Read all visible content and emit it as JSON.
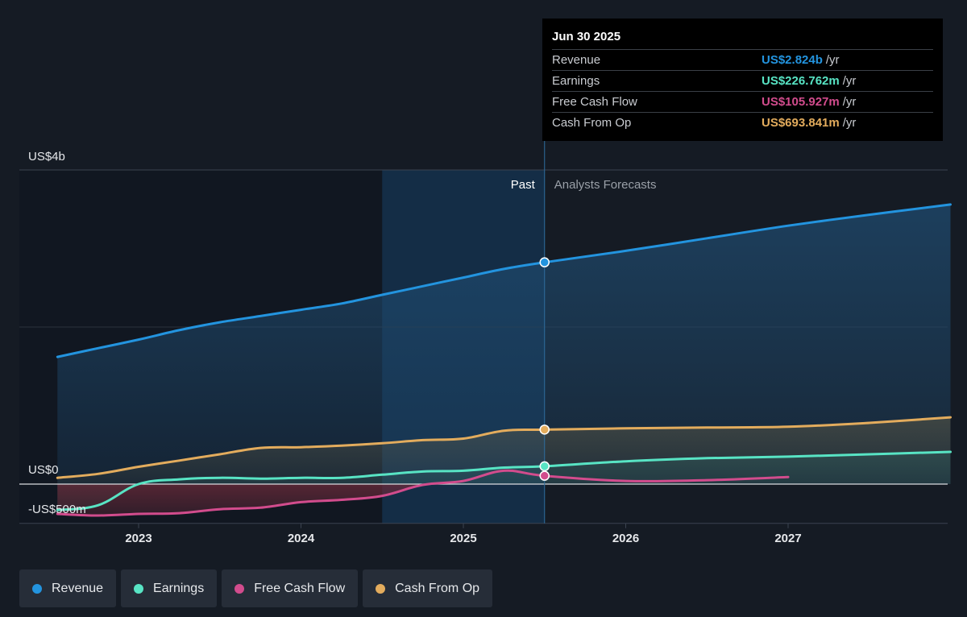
{
  "chart_data": {
    "type": "line",
    "y_unit_labels": [
      "US$4b",
      "US$0",
      "-US$500m"
    ],
    "ylim": [
      -500,
      4000
    ],
    "x_tick_labels": [
      "2023",
      "2024",
      "2025",
      "2026",
      "2027"
    ],
    "past_label": "Past",
    "forecast_label": "Analysts Forecasts",
    "divider_date": 2025.5,
    "series": [
      {
        "name": "Revenue",
        "color": "#2394df",
        "points": [
          [
            2022.5,
            1620
          ],
          [
            2022.75,
            1730
          ],
          [
            2023.0,
            1840
          ],
          [
            2023.25,
            1960
          ],
          [
            2023.5,
            2060
          ],
          [
            2023.75,
            2140
          ],
          [
            2024.0,
            2220
          ],
          [
            2024.25,
            2300
          ],
          [
            2024.5,
            2410
          ],
          [
            2024.75,
            2520
          ],
          [
            2025.0,
            2630
          ],
          [
            2025.25,
            2740
          ],
          [
            2025.5,
            2824
          ],
          [
            2026.0,
            2970
          ],
          [
            2026.5,
            3130
          ],
          [
            2027.0,
            3290
          ],
          [
            2027.5,
            3430
          ],
          [
            2028.0,
            3560
          ]
        ]
      },
      {
        "name": "Earnings",
        "color": "#58e4c4",
        "points": [
          [
            2022.5,
            -330
          ],
          [
            2022.75,
            -270
          ],
          [
            2023.0,
            0
          ],
          [
            2023.25,
            60
          ],
          [
            2023.5,
            80
          ],
          [
            2023.75,
            70
          ],
          [
            2024.0,
            80
          ],
          [
            2024.25,
            80
          ],
          [
            2024.5,
            120
          ],
          [
            2024.75,
            160
          ],
          [
            2025.0,
            170
          ],
          [
            2025.25,
            210
          ],
          [
            2025.5,
            226.762
          ],
          [
            2026.0,
            290
          ],
          [
            2026.5,
            330
          ],
          [
            2027.0,
            350
          ],
          [
            2027.5,
            380
          ],
          [
            2028.0,
            410
          ]
        ]
      },
      {
        "name": "Free Cash Flow",
        "color": "#d24c8d",
        "points": [
          [
            2022.5,
            -380
          ],
          [
            2022.75,
            -400
          ],
          [
            2023.0,
            -380
          ],
          [
            2023.25,
            -370
          ],
          [
            2023.5,
            -320
          ],
          [
            2023.75,
            -300
          ],
          [
            2024.0,
            -230
          ],
          [
            2024.25,
            -200
          ],
          [
            2024.5,
            -150
          ],
          [
            2024.75,
            -10
          ],
          [
            2025.0,
            40
          ],
          [
            2025.25,
            170
          ],
          [
            2025.5,
            105.927
          ],
          [
            2026.0,
            40
          ],
          [
            2026.5,
            50
          ],
          [
            2027.0,
            90
          ]
        ]
      },
      {
        "name": "Cash From Op",
        "color": "#e3ac5d",
        "points": [
          [
            2022.5,
            80
          ],
          [
            2022.75,
            130
          ],
          [
            2023.0,
            220
          ],
          [
            2023.25,
            300
          ],
          [
            2023.5,
            380
          ],
          [
            2023.75,
            460
          ],
          [
            2024.0,
            470
          ],
          [
            2024.25,
            490
          ],
          [
            2024.5,
            520
          ],
          [
            2024.75,
            560
          ],
          [
            2025.0,
            580
          ],
          [
            2025.25,
            680
          ],
          [
            2025.5,
            693.841
          ],
          [
            2026.0,
            710
          ],
          [
            2026.5,
            720
          ],
          [
            2027.0,
            730
          ],
          [
            2027.5,
            780
          ],
          [
            2028.0,
            850
          ]
        ]
      }
    ]
  },
  "tooltip": {
    "date": "Jun 30 2025",
    "rows": [
      {
        "label": "Revenue",
        "value": "US$2.824b",
        "unit": "/yr",
        "color": "#2394df"
      },
      {
        "label": "Earnings",
        "value": "US$226.762m",
        "unit": "/yr",
        "color": "#58e4c4"
      },
      {
        "label": "Free Cash Flow",
        "value": "US$105.927m",
        "unit": "/yr",
        "color": "#d24c8d"
      },
      {
        "label": "Cash From Op",
        "value": "US$693.841m",
        "unit": "/yr",
        "color": "#e3ac5d"
      }
    ]
  },
  "legend": [
    {
      "label": "Revenue",
      "color": "#2394df"
    },
    {
      "label": "Earnings",
      "color": "#58e4c4"
    },
    {
      "label": "Free Cash Flow",
      "color": "#d24c8d"
    },
    {
      "label": "Cash From Op",
      "color": "#e3ac5d"
    }
  ]
}
